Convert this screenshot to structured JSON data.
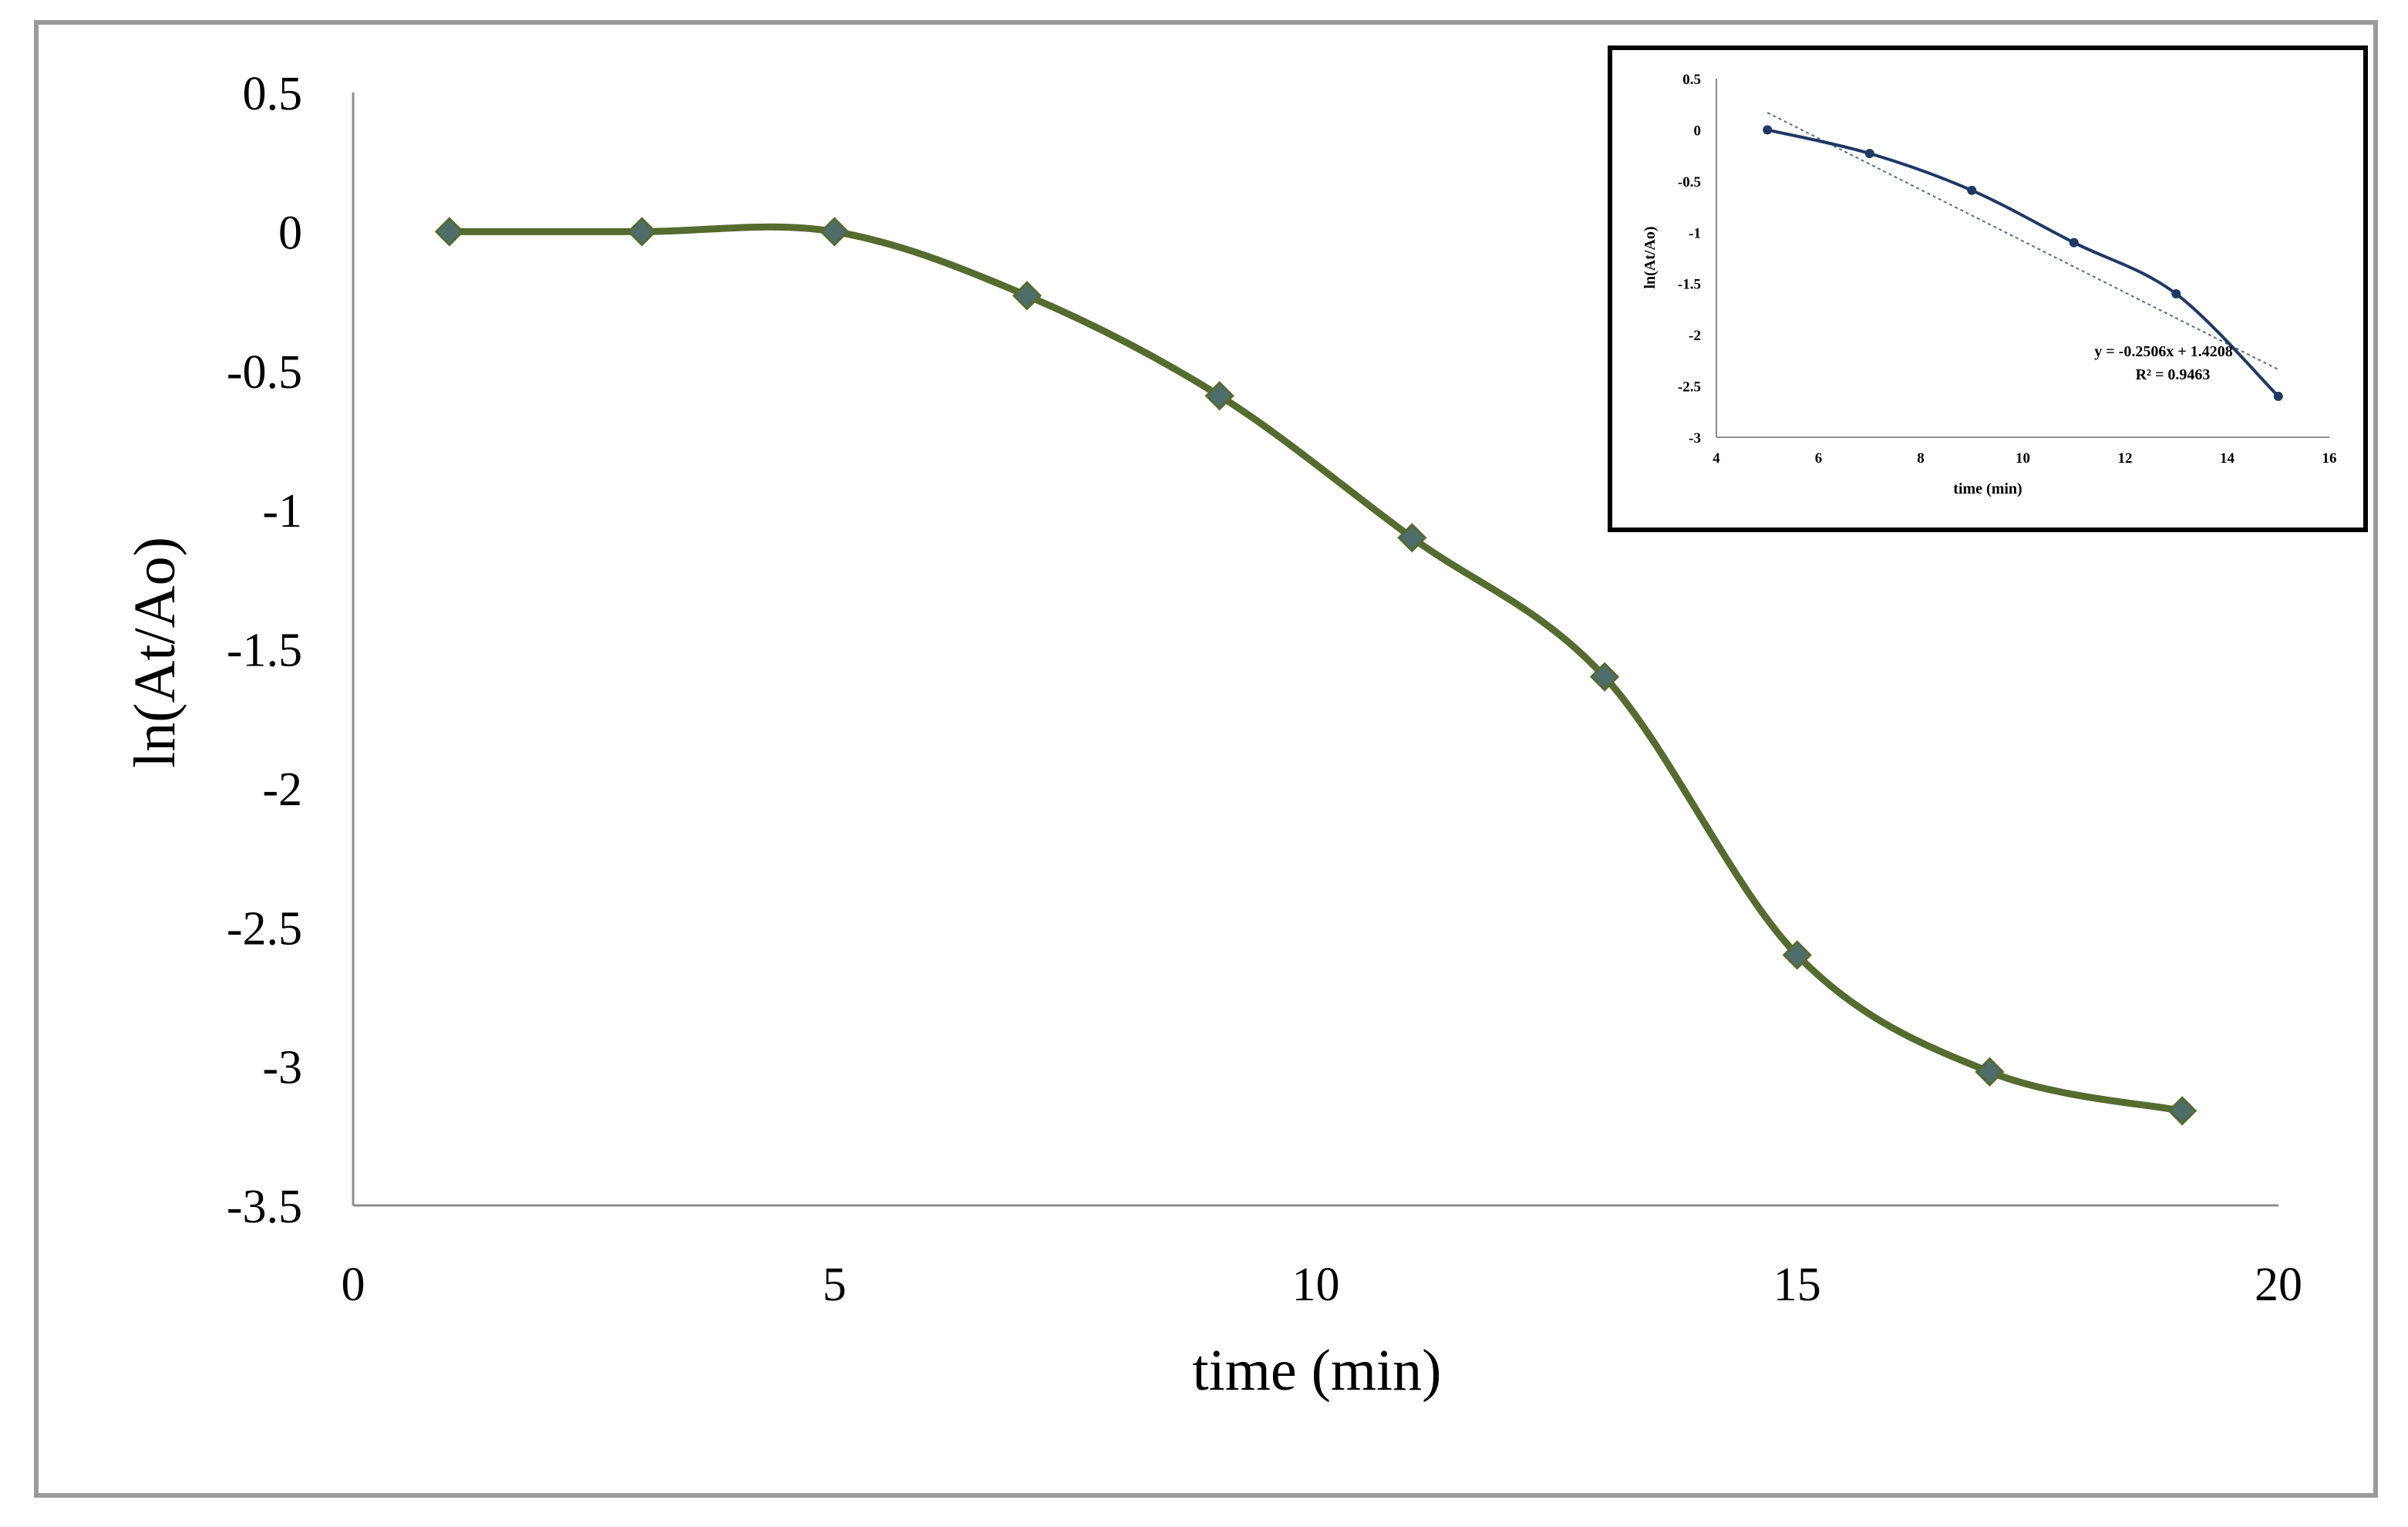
{
  "chart_data": [
    {
      "type": "line",
      "title": "",
      "xlabel": "time (min)",
      "ylabel": "ln(At/Ao)",
      "xlim": [
        0,
        20
      ],
      "ylim": [
        -3.5,
        0.5
      ],
      "x_ticks": [
        "0",
        "5",
        "10",
        "15",
        "20"
      ],
      "y_ticks": [
        "0.5",
        "0",
        "-0.5",
        "-1",
        "-1.5",
        "-2",
        "-2.5",
        "-3",
        "-3.5"
      ],
      "grid": false,
      "legend": "none",
      "marker": "diamond",
      "smooth": true,
      "line_color": "#556b2f",
      "marker_color": "#4f6d6a",
      "series": [
        {
          "x": [
            1,
            3,
            5,
            7,
            9,
            11,
            13,
            15,
            17,
            19
          ],
          "y": [
            0.0,
            0.0,
            0.0,
            -0.23,
            -0.59,
            -1.1,
            -1.6,
            -2.6,
            -3.02,
            -3.16
          ]
        }
      ]
    },
    {
      "type": "line",
      "title": "",
      "xlabel": "time (min)",
      "ylabel": "ln(At/Ao)",
      "xlim": [
        4,
        16
      ],
      "ylim": [
        -3,
        0.5
      ],
      "x_ticks": [
        "4",
        "6",
        "8",
        "10",
        "12",
        "14",
        "16"
      ],
      "y_ticks": [
        "0.5",
        "0",
        "-0.5",
        "-1",
        "-1.5",
        "-2",
        "-2.5",
        "-3"
      ],
      "grid": false,
      "legend": "none",
      "marker": "circle",
      "smooth": true,
      "line_color": "#1f3864",
      "trendline_color": "#5a6b7a",
      "series": [
        {
          "x": [
            5,
            7,
            9,
            11,
            13,
            15
          ],
          "y": [
            0.0,
            -0.23,
            -0.59,
            -1.1,
            -1.6,
            -2.6
          ]
        }
      ],
      "trendline": {
        "slope": -0.2506,
        "intercept": 1.4208,
        "equation_label": "y = -0.2506x + 1.4208",
        "r2_label": "R² = 0.9463"
      }
    }
  ]
}
